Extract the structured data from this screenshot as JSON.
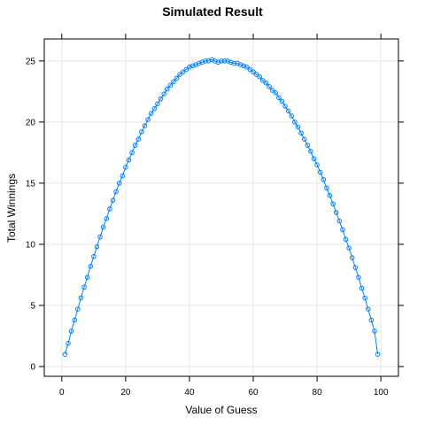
{
  "chart_data": {
    "type": "scatter",
    "title": "Simulated Result",
    "xlabel": "Value of Guess",
    "ylabel": "Total Winnings",
    "xlim": [
      -5.5,
      105.5
    ],
    "ylim": [
      -0.8,
      26.8
    ],
    "xticks": [
      0,
      20,
      40,
      60,
      80,
      100
    ],
    "yticks": [
      0,
      5,
      10,
      15,
      20,
      25
    ],
    "xtick_labels": [
      "0",
      "20",
      "40",
      "60",
      "80",
      "100"
    ],
    "ytick_labels": [
      "0",
      "5",
      "10",
      "15",
      "20",
      "25"
    ],
    "grid": true,
    "series": [
      {
        "x": [
          1,
          2,
          3,
          4,
          5,
          6,
          7,
          8,
          9,
          10,
          11,
          12,
          13,
          14,
          15,
          16,
          17,
          18,
          19,
          20,
          21,
          22,
          23,
          24,
          25,
          26,
          27,
          28,
          29,
          30,
          31,
          32,
          33,
          34,
          35,
          36,
          37,
          38,
          39,
          40,
          41,
          42,
          43,
          44,
          45,
          46,
          47,
          48,
          49,
          50,
          51,
          52,
          53,
          54,
          55,
          56,
          57,
          58,
          59,
          60,
          61,
          62,
          63,
          64,
          65,
          66,
          67,
          68,
          69,
          70,
          71,
          72,
          73,
          74,
          75,
          76,
          77,
          78,
          79,
          80,
          81,
          82,
          83,
          84,
          85,
          86,
          87,
          88,
          89,
          90,
          91,
          92,
          93,
          94,
          95,
          96,
          97,
          98,
          99
        ],
        "y": [
          1.0,
          1.9,
          2.9,
          3.8,
          4.7,
          5.6,
          6.5,
          7.3,
          8.2,
          9.0,
          9.8,
          10.6,
          11.4,
          12.1,
          12.9,
          13.6,
          14.3,
          15.0,
          15.6,
          16.3,
          16.9,
          17.5,
          18.1,
          18.6,
          19.2,
          19.7,
          20.2,
          20.7,
          21.1,
          21.5,
          21.9,
          22.3,
          22.7,
          23.0,
          23.3,
          23.6,
          23.9,
          24.1,
          24.3,
          24.5,
          24.6,
          24.7,
          24.8,
          24.9,
          25.0,
          25.0,
          25.1,
          25.0,
          24.9,
          25.0,
          25.0,
          25.0,
          24.9,
          24.8,
          24.8,
          24.7,
          24.6,
          24.5,
          24.3,
          24.1,
          23.9,
          23.7,
          23.4,
          23.2,
          22.9,
          22.6,
          22.4,
          22.0,
          21.7,
          21.3,
          20.9,
          20.5,
          20.0,
          19.6,
          19.1,
          18.6,
          18.1,
          17.6,
          17.0,
          16.5,
          15.9,
          15.3,
          14.6,
          14.0,
          13.3,
          12.6,
          11.9,
          11.2,
          10.4,
          9.7,
          8.9,
          8.1,
          7.3,
          6.4,
          5.6,
          4.7,
          3.8,
          2.9,
          1.0
        ]
      }
    ]
  },
  "colors": {
    "series": "#0080ff",
    "grid": "#e6e6e6",
    "frame": "#000000"
  }
}
